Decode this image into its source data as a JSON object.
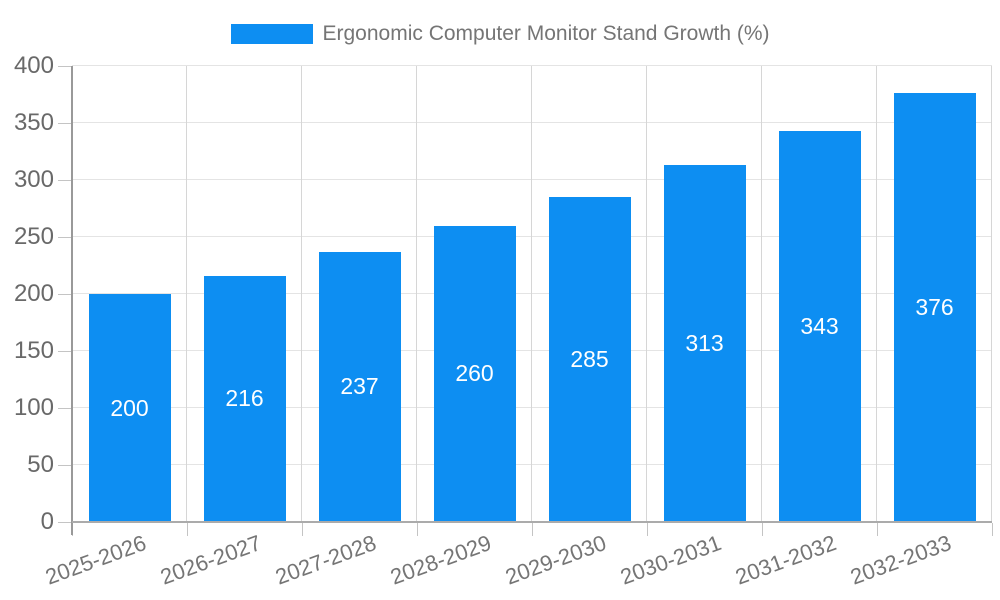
{
  "legend": {
    "label": "Ergonomic Computer Monitor Stand Growth (%)",
    "position": "top"
  },
  "colors": {
    "bar": "#0d8ef2",
    "value_label": "#ffffff",
    "legend_text": "#757575",
    "y_tick_label": "#696969",
    "x_tick_label": "#757575",
    "grid_horizontal": "#e4e4e4",
    "grid_vertical": "#d6d6d6",
    "y_axis_line": "#999999",
    "x_axis_line": "#ababab",
    "tick_mark": "#c4c4c4",
    "background": "#ffffff"
  },
  "chart_data": {
    "type": "bar",
    "title": "Ergonomic Computer Monitor Stand Growth (%)",
    "xlabel": "",
    "ylabel": "",
    "categories": [
      "2025-2026",
      "2026-2027",
      "2027-2028",
      "2028-2029",
      "2029-2030",
      "2030-2031",
      "2031-2032",
      "2032-2033"
    ],
    "values": [
      200,
      216,
      237,
      260,
      285,
      313,
      343,
      376
    ],
    "ylim": [
      0,
      400
    ],
    "yticks": [
      0,
      50,
      100,
      150,
      200,
      250,
      300,
      350,
      400
    ],
    "grid": true,
    "legend_position": "top",
    "value_labels": "inside-center-white",
    "x_tick_rotation_deg": -20
  }
}
